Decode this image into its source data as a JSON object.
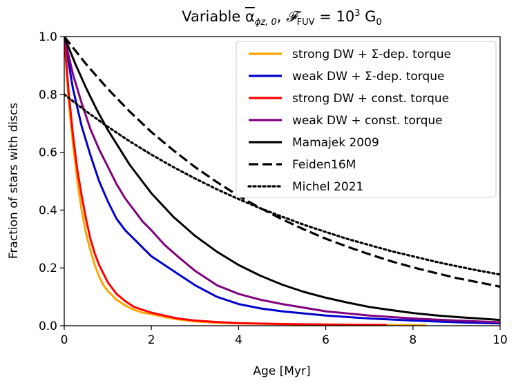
{
  "chart_data": {
    "type": "line",
    "title": "Variable α̅ϕz,0, 𝓕FUV = 10³ G0",
    "title_parts": {
      "prefix": "Variable ",
      "alpha": "α",
      "alpha_sub": "ϕz, 0",
      "sep": ", ",
      "flux": "𝓕",
      "flux_sub": "FUV",
      "eq": " = 10",
      "exp": "3",
      "unit": " G",
      "unit_sub": "0"
    },
    "xlabel": "Age [Myr]",
    "ylabel": "Fraction of stars with discs",
    "xlim": [
      0,
      10
    ],
    "ylim": [
      0,
      1.0
    ],
    "xticks": [
      0,
      2,
      4,
      6,
      8,
      10
    ],
    "xtick_labels": [
      "0",
      "2",
      "4",
      "6",
      "8",
      "10"
    ],
    "yticks": [
      0.0,
      0.2,
      0.4,
      0.6,
      0.8,
      1.0
    ],
    "ytick_labels": [
      "0.0",
      "0.2",
      "0.4",
      "0.6",
      "0.8",
      "1.0"
    ],
    "legend_position": "top-right",
    "series": [
      {
        "name": "strong DW + Σ-dep. torque",
        "color": "#ffa500",
        "style": "solid",
        "x": [
          0,
          0.1,
          0.2,
          0.3,
          0.4,
          0.5,
          0.6,
          0.7,
          0.8,
          0.9,
          1.0,
          1.2,
          1.4,
          1.6,
          1.8,
          2.0,
          2.3,
          2.6,
          3.0,
          3.5,
          4.0,
          5.0,
          6.0,
          7.0,
          8.3
        ],
        "y": [
          1.0,
          0.78,
          0.63,
          0.5,
          0.4,
          0.32,
          0.26,
          0.21,
          0.17,
          0.14,
          0.12,
          0.09,
          0.07,
          0.055,
          0.045,
          0.04,
          0.03,
          0.022,
          0.015,
          0.01,
          0.008,
          0.005,
          0.004,
          0.003,
          0.002
        ]
      },
      {
        "name": "weak DW + Σ-dep. torque",
        "color": "#0000cd",
        "style": "solid",
        "x": [
          0,
          0.2,
          0.4,
          0.6,
          0.8,
          1.0,
          1.2,
          1.4,
          1.6,
          1.8,
          2.0,
          2.2,
          2.5,
          3.0,
          3.5,
          4.0,
          4.5,
          5.0,
          6.0,
          7.0,
          8.0,
          9.0,
          10.0
        ],
        "y": [
          1.0,
          0.82,
          0.69,
          0.59,
          0.5,
          0.43,
          0.37,
          0.33,
          0.3,
          0.27,
          0.24,
          0.22,
          0.19,
          0.14,
          0.1,
          0.075,
          0.06,
          0.05,
          0.035,
          0.025,
          0.018,
          0.012,
          0.008
        ]
      },
      {
        "name": "strong DW + const. torque",
        "color": "#ff0000",
        "style": "solid",
        "x": [
          0,
          0.1,
          0.2,
          0.3,
          0.4,
          0.5,
          0.6,
          0.7,
          0.8,
          0.9,
          1.0,
          1.2,
          1.4,
          1.6,
          1.8,
          2.0,
          2.3,
          2.6,
          3.0,
          3.5,
          4.0,
          5.0,
          6.0,
          7.4
        ],
        "y": [
          1.0,
          0.81,
          0.66,
          0.54,
          0.45,
          0.37,
          0.3,
          0.25,
          0.21,
          0.18,
          0.15,
          0.11,
          0.085,
          0.065,
          0.055,
          0.045,
          0.035,
          0.025,
          0.018,
          0.013,
          0.009,
          0.006,
          0.004,
          0.003
        ]
      },
      {
        "name": "weak DW + const. torque",
        "color": "#800080",
        "style": "solid",
        "x": [
          0,
          0.2,
          0.4,
          0.6,
          0.8,
          1.0,
          1.2,
          1.4,
          1.6,
          1.8,
          2.0,
          2.3,
          2.6,
          3.0,
          3.5,
          4.0,
          4.5,
          5.0,
          6.0,
          7.0,
          8.0,
          9.0,
          10.0
        ],
        "y": [
          1.0,
          0.87,
          0.77,
          0.68,
          0.61,
          0.55,
          0.49,
          0.44,
          0.4,
          0.36,
          0.33,
          0.28,
          0.24,
          0.19,
          0.14,
          0.11,
          0.09,
          0.075,
          0.05,
          0.035,
          0.025,
          0.018,
          0.012
        ]
      },
      {
        "name": "Mamajek 2009",
        "color": "#000000",
        "style": "solid",
        "x": [
          0,
          0.25,
          0.5,
          0.75,
          1.0,
          1.5,
          2.0,
          2.5,
          3.0,
          3.5,
          4.0,
          4.5,
          5.0,
          5.5,
          6.0,
          6.5,
          7.0,
          7.5,
          8.0,
          8.5,
          9.0,
          9.5,
          10.0
        ],
        "y": [
          1.0,
          0.907,
          0.823,
          0.746,
          0.677,
          0.557,
          0.458,
          0.377,
          0.311,
          0.256,
          0.21,
          0.173,
          0.142,
          0.117,
          0.097,
          0.08,
          0.065,
          0.054,
          0.044,
          0.036,
          0.03,
          0.025,
          0.02
        ]
      },
      {
        "name": "Feiden16M",
        "color": "#000000",
        "style": "dashed",
        "x": [
          0,
          0.5,
          1.0,
          1.5,
          2.0,
          2.5,
          3.0,
          3.5,
          4.0,
          4.5,
          5.0,
          5.5,
          6.0,
          6.5,
          7.0,
          7.5,
          8.0,
          8.5,
          9.0,
          9.5,
          10.0
        ],
        "y": [
          1.0,
          0.905,
          0.819,
          0.741,
          0.67,
          0.607,
          0.549,
          0.497,
          0.449,
          0.407,
          0.368,
          0.333,
          0.301,
          0.273,
          0.247,
          0.223,
          0.202,
          0.183,
          0.165,
          0.15,
          0.135
        ]
      },
      {
        "name": "Michel 2021",
        "color": "#000000",
        "style": "dotted",
        "x": [
          0,
          0.5,
          1.0,
          1.5,
          2.0,
          2.5,
          3.0,
          3.5,
          4.0,
          4.5,
          5.0,
          5.5,
          6.0,
          6.5,
          7.0,
          7.5,
          8.0,
          8.5,
          9.0,
          9.5,
          10.0
        ],
        "y": [
          0.8,
          0.742,
          0.688,
          0.638,
          0.592,
          0.549,
          0.509,
          0.472,
          0.438,
          0.406,
          0.377,
          0.349,
          0.324,
          0.3,
          0.279,
          0.258,
          0.24,
          0.222,
          0.206,
          0.191,
          0.177
        ]
      }
    ]
  }
}
